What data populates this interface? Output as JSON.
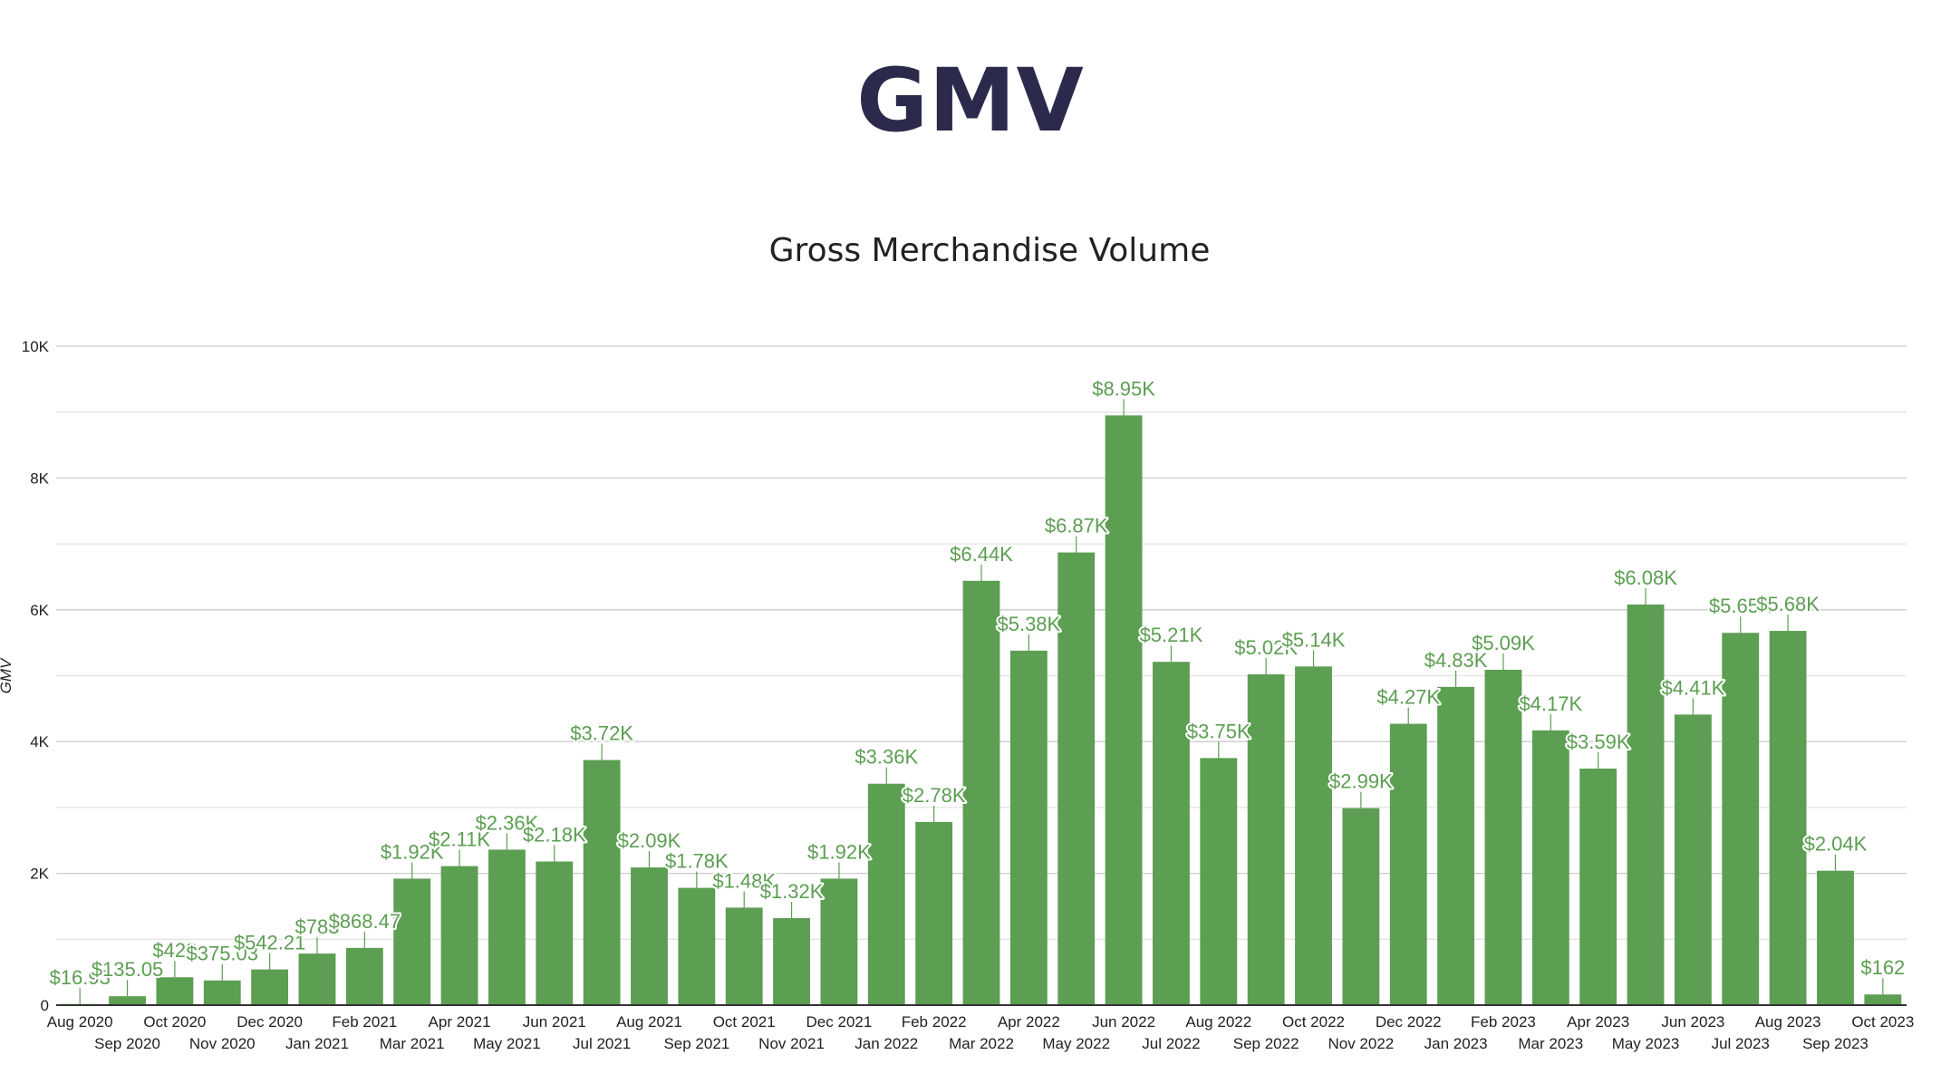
{
  "page": {
    "title": "GMV"
  },
  "chart_data": {
    "type": "bar",
    "title": "Gross Merchandise Volume",
    "xlabel": "",
    "ylabel": "GMV",
    "ylim": [
      0,
      10000
    ],
    "yticks": [
      0,
      2000,
      4000,
      6000,
      8000,
      10000
    ],
    "ytick_labels": [
      "0",
      "2K",
      "4K",
      "6K",
      "8K",
      "10K"
    ],
    "grid": true,
    "colors": {
      "bar": "#5c9e52",
      "label": "#5c9e52",
      "title": "#2b2a4c"
    },
    "categories": [
      "Aug 2020",
      "Sep 2020",
      "Oct 2020",
      "Nov 2020",
      "Dec 2020",
      "Jan 2021",
      "Feb 2021",
      "Mar 2021",
      "Apr 2021",
      "May 2021",
      "Jun 2021",
      "Jul 2021",
      "Aug 2021",
      "Sep 2021",
      "Oct 2021",
      "Nov 2021",
      "Dec 2021",
      "Jan 2022",
      "Feb 2022",
      "Mar 2022",
      "Apr 2022",
      "May 2022",
      "Jun 2022",
      "Jul 2022",
      "Aug 2022",
      "Sep 2022",
      "Oct 2022",
      "Nov 2022",
      "Dec 2022",
      "Jan 2023",
      "Feb 2023",
      "Mar 2023",
      "Apr 2023",
      "May 2023",
      "Jun 2023",
      "Jul 2023",
      "Aug 2023",
      "Sep 2023",
      "Oct 2023"
    ],
    "series": [
      {
        "values": [
          16.93,
          135.05,
          423,
          375.03,
          542.21,
          783,
          868.47,
          1920,
          2110,
          2360,
          2180,
          3720,
          2090,
          1780,
          1480,
          1320,
          1920,
          3360,
          2780,
          6440,
          5380,
          6870,
          8950,
          5210,
          3750,
          5020,
          5140,
          2990,
          4270,
          4830,
          5090,
          4170,
          3590,
          6080,
          4410,
          5650,
          5680,
          2040,
          162
        ]
      }
    ],
    "data_labels": [
      "$16.93",
      "$135.05",
      "$423",
      "$375.03",
      "$542.21",
      "$783",
      "$868.47",
      "$1.92K",
      "$2.11K",
      "$2.36K",
      "$2.18K",
      "$3.72K",
      "$2.09K",
      "$1.78K",
      "$1.48K",
      "$1.32K",
      "$1.92K",
      "$3.36K",
      "$2.78K",
      "$6.44K",
      "$5.38K",
      "$6.87K",
      "$8.95K",
      "$5.21K",
      "$3.75K",
      "$5.02K",
      "$5.14K",
      "$2.99K",
      "$4.27K",
      "$4.83K",
      "$5.09K",
      "$4.17K",
      "$3.59K",
      "$6.08K",
      "$4.41K",
      "$5.65K",
      "$5.68K",
      "$2.04K",
      "$162"
    ]
  }
}
